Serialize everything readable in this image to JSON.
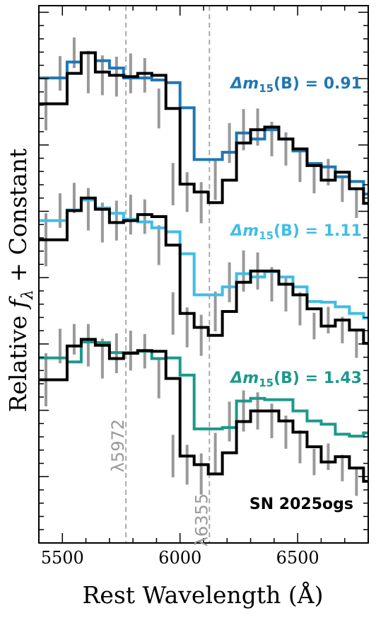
{
  "chart_data": {
    "type": "line",
    "xlabel": "Rest Wavelength (Å)",
    "ylabel_main": "Relative ",
    "ylabel_f": "f",
    "ylabel_sub": "λ",
    "ylabel_rest": " + Constant",
    "xlim": [
      5400,
      6800
    ],
    "ylim": [
      0,
      8.1
    ],
    "xticks": [
      5500,
      6000,
      6500
    ],
    "xtick_labels": [
      "5500",
      "6000",
      "6500"
    ],
    "grid": false,
    "object_name": "SN 2025ogs",
    "lines": [
      {
        "x": 5770,
        "label": "λ5972"
      },
      {
        "x": 6125,
        "label": "λ6355"
      }
    ],
    "x": [
      5400,
      5460,
      5520,
      5580,
      5640,
      5700,
      5760,
      5820,
      5880,
      5940,
      6000,
      6060,
      6120,
      6180,
      6240,
      6300,
      6360,
      6420,
      6480,
      6540,
      6600,
      6660,
      6720,
      6780
    ],
    "series": [
      {
        "name": "Δm15(B) = 0.91",
        "color": "#1f77b4",
        "label_text": "Δm",
        "label_sub": "15",
        "label_rest": "(B) = 0.91",
        "values": [
          7.01,
          7.01,
          7.25,
          7.39,
          7.27,
          7.16,
          7.01,
          7.01,
          6.98,
          6.94,
          6.56,
          5.78,
          5.78,
          5.89,
          6.18,
          6.09,
          6.23,
          6.09,
          5.91,
          5.72,
          5.67,
          5.52,
          5.45,
          5.26
        ]
      },
      {
        "name": "Δm15(B) = 1.11",
        "color": "#40bde6",
        "label_text": "Δm",
        "label_sub": "15",
        "label_rest": "(B) = 1.11",
        "values": [
          4.86,
          4.86,
          5.02,
          5.17,
          5.05,
          4.97,
          4.88,
          4.84,
          4.75,
          4.69,
          4.36,
          3.74,
          3.74,
          3.86,
          4.06,
          4.01,
          4.09,
          4.01,
          3.86,
          3.64,
          3.63,
          3.56,
          3.46,
          3.39
        ]
      },
      {
        "name": "Δm15(B) = 1.43",
        "color": "#1b998b",
        "label_text": "Δm",
        "label_sub": "15",
        "label_rest": "(B) = 1.43",
        "values": [
          2.79,
          2.79,
          2.73,
          3.03,
          3.02,
          2.87,
          2.87,
          2.89,
          2.78,
          2.79,
          2.53,
          1.72,
          1.72,
          1.74,
          2.14,
          2.18,
          2.16,
          2.16,
          1.99,
          1.84,
          1.79,
          1.64,
          1.61,
          1.66
        ]
      },
      {
        "name": "SN 2025ogs (offset 1)",
        "color": "#000000",
        "values": [
          6.62,
          6.62,
          7.08,
          7.39,
          7.1,
          7.05,
          7.03,
          7.08,
          7.05,
          6.55,
          5.41,
          5.29,
          5.13,
          5.47,
          6.03,
          6.23,
          6.27,
          6.09,
          5.94,
          5.69,
          5.47,
          5.59,
          5.34,
          5.12
        ]
      },
      {
        "name": "SN 2025ogs (offset 2)",
        "color": "#000000",
        "values": [
          4.57,
          4.57,
          5.01,
          5.2,
          5.03,
          4.83,
          4.86,
          4.95,
          4.92,
          4.49,
          3.46,
          3.25,
          3.13,
          3.49,
          3.93,
          4.1,
          4.1,
          3.9,
          3.74,
          3.53,
          3.27,
          3.36,
          3.21,
          3.01
        ]
      },
      {
        "name": "SN 2025ogs (offset 3)",
        "color": "#000000",
        "values": [
          2.46,
          2.46,
          2.97,
          3.07,
          2.98,
          2.78,
          2.86,
          2.9,
          2.89,
          2.48,
          1.31,
          1.18,
          1.04,
          1.36,
          1.83,
          1.99,
          1.99,
          1.84,
          1.67,
          1.45,
          1.22,
          1.3,
          1.13,
          0.93
        ]
      }
    ],
    "error_bars": [
      0.28,
      0.4,
      0.26,
      0.23,
      0.32,
      0.3,
      0.3,
      0.3,
      0.26,
      0.3,
      0.32,
      0.3,
      0.31,
      0.3,
      0.3,
      0.31,
      0.28,
      0.26,
      0.25,
      0.25,
      0.2,
      0.2,
      0.2,
      0.22
    ]
  }
}
